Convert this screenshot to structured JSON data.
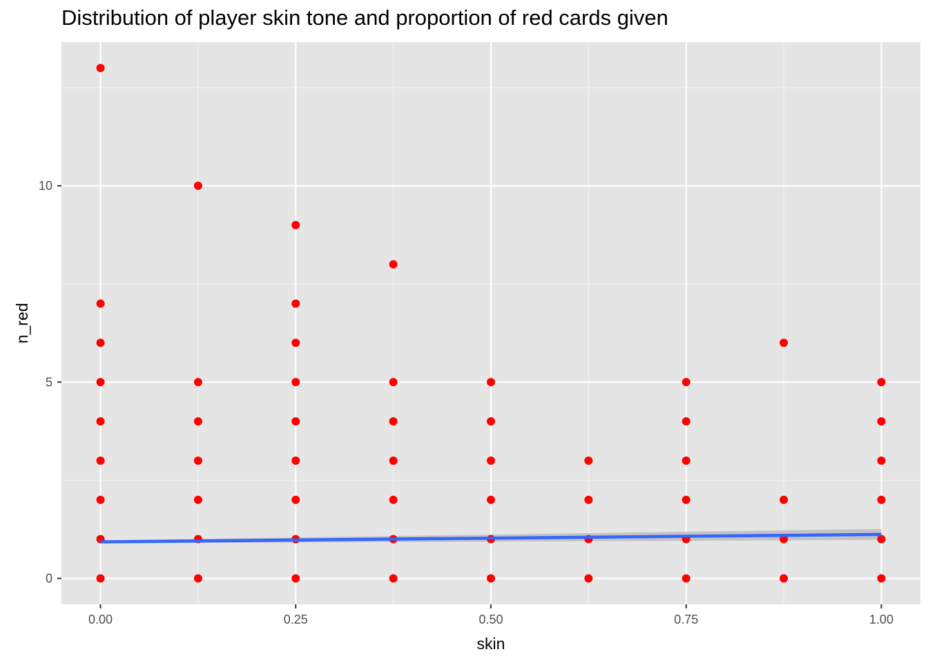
{
  "chart_data": {
    "type": "scatter",
    "title": "Distribution of player skin tone and proportion of red cards given",
    "xlabel": "skin",
    "ylabel": "n_red",
    "xlim": [
      -0.05,
      1.05
    ],
    "ylim": [
      -0.66,
      13.66
    ],
    "x_ticks": [
      0,
      0.25,
      0.5,
      0.75,
      1
    ],
    "x_tick_labels": [
      "0.00",
      "0.25",
      "0.50",
      "0.75",
      "1.00"
    ],
    "y_ticks": [
      0,
      5,
      10
    ],
    "y_tick_labels": [
      "0",
      "5",
      "10"
    ],
    "grid": true,
    "panel_background": "#e5e5e5",
    "point_color": "#ff0000",
    "points": [
      {
        "x": 0,
        "y": 0
      },
      {
        "x": 0,
        "y": 1
      },
      {
        "x": 0,
        "y": 2
      },
      {
        "x": 0,
        "y": 3
      },
      {
        "x": 0,
        "y": 4
      },
      {
        "x": 0,
        "y": 5
      },
      {
        "x": 0,
        "y": 6
      },
      {
        "x": 0,
        "y": 7
      },
      {
        "x": 0,
        "y": 13
      },
      {
        "x": 0.125,
        "y": 0
      },
      {
        "x": 0.125,
        "y": 1
      },
      {
        "x": 0.125,
        "y": 2
      },
      {
        "x": 0.125,
        "y": 3
      },
      {
        "x": 0.125,
        "y": 4
      },
      {
        "x": 0.125,
        "y": 5
      },
      {
        "x": 0.125,
        "y": 10
      },
      {
        "x": 0.25,
        "y": 0
      },
      {
        "x": 0.25,
        "y": 1
      },
      {
        "x": 0.25,
        "y": 2
      },
      {
        "x": 0.25,
        "y": 3
      },
      {
        "x": 0.25,
        "y": 4
      },
      {
        "x": 0.25,
        "y": 5
      },
      {
        "x": 0.25,
        "y": 6
      },
      {
        "x": 0.25,
        "y": 7
      },
      {
        "x": 0.25,
        "y": 9
      },
      {
        "x": 0.375,
        "y": 0
      },
      {
        "x": 0.375,
        "y": 1
      },
      {
        "x": 0.375,
        "y": 2
      },
      {
        "x": 0.375,
        "y": 3
      },
      {
        "x": 0.375,
        "y": 4
      },
      {
        "x": 0.375,
        "y": 5
      },
      {
        "x": 0.375,
        "y": 8
      },
      {
        "x": 0.5,
        "y": 0
      },
      {
        "x": 0.5,
        "y": 1
      },
      {
        "x": 0.5,
        "y": 2
      },
      {
        "x": 0.5,
        "y": 3
      },
      {
        "x": 0.5,
        "y": 4
      },
      {
        "x": 0.5,
        "y": 5
      },
      {
        "x": 0.625,
        "y": 0
      },
      {
        "x": 0.625,
        "y": 1
      },
      {
        "x": 0.625,
        "y": 2
      },
      {
        "x": 0.625,
        "y": 3
      },
      {
        "x": 0.75,
        "y": 0
      },
      {
        "x": 0.75,
        "y": 1
      },
      {
        "x": 0.75,
        "y": 2
      },
      {
        "x": 0.75,
        "y": 3
      },
      {
        "x": 0.75,
        "y": 4
      },
      {
        "x": 0.75,
        "y": 5
      },
      {
        "x": 0.875,
        "y": 0
      },
      {
        "x": 0.875,
        "y": 1
      },
      {
        "x": 0.875,
        "y": 2
      },
      {
        "x": 0.875,
        "y": 6
      },
      {
        "x": 1,
        "y": 0
      },
      {
        "x": 1,
        "y": 1
      },
      {
        "x": 1,
        "y": 2
      },
      {
        "x": 1,
        "y": 3
      },
      {
        "x": 1,
        "y": 4
      },
      {
        "x": 1,
        "y": 5
      }
    ],
    "trend_line": {
      "method": "linear",
      "color": "#3366ff",
      "band_color": "#bdbdbd",
      "x": [
        0,
        1
      ],
      "y": [
        0.93,
        1.12
      ],
      "band_lower": [
        0.89,
        0.98
      ],
      "band_upper": [
        0.97,
        1.26
      ]
    }
  }
}
